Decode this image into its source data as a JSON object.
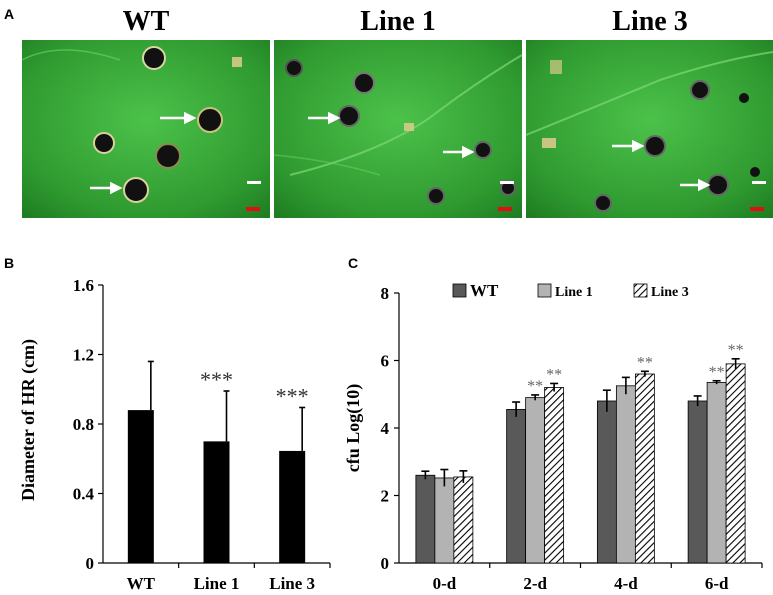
{
  "panels": {
    "a": {
      "letter": "A",
      "titles": [
        "WT",
        "Line 1",
        "Line 3"
      ]
    },
    "b": {
      "letter": "B"
    },
    "c": {
      "letter": "C"
    }
  },
  "colors": {
    "leaf": "#3aa83a",
    "leaf_dark": "#1f7a22",
    "lesion": "#101010",
    "arrow": "#ffffff",
    "scale_white": "#ffffff",
    "scale_red": "#e01010",
    "bar_black": "#000000",
    "bar_dark_gray": "#595959",
    "bar_light_gray": "#b3b3b3"
  },
  "chart_data": [
    {
      "type": "bar",
      "categories": [
        "WT",
        "Line 1",
        "Line 3"
      ],
      "values": [
        0.88,
        0.7,
        0.645
      ],
      "errors": [
        0.28,
        0.29,
        0.25
      ],
      "annotations": [
        "",
        "***",
        "***"
      ],
      "ylabel": "Diameter of HR (cm)",
      "yticks": [
        "0",
        "0.4",
        "0.8",
        "1.2",
        "1.6"
      ],
      "ylim": [
        0,
        1.6
      ],
      "grid": false
    },
    {
      "type": "bar",
      "categories": [
        "0-d",
        "2-d",
        "4-d",
        "6-d"
      ],
      "series": [
        {
          "name": "WT",
          "values": [
            2.6,
            4.55,
            4.8,
            4.8
          ],
          "errors": [
            0.12,
            0.22,
            0.32,
            0.15
          ],
          "annotations": [
            "",
            "",
            "",
            ""
          ]
        },
        {
          "name": "Line 1",
          "values": [
            2.52,
            4.9,
            5.25,
            5.35
          ],
          "errors": [
            0.25,
            0.08,
            0.25,
            0.05
          ],
          "annotations": [
            "",
            "**",
            "",
            "**"
          ]
        },
        {
          "name": "Line 3",
          "values": [
            2.55,
            5.2,
            5.6,
            5.9
          ],
          "errors": [
            0.18,
            0.12,
            0.08,
            0.15
          ],
          "annotations": [
            "",
            "**",
            "**",
            "**"
          ]
        }
      ],
      "ylabel": "cfu Log(10)",
      "yticks": [
        "0",
        "2",
        "4",
        "6",
        "8"
      ],
      "ylim": [
        0,
        8
      ],
      "legend_position": "top",
      "grid": false
    }
  ]
}
